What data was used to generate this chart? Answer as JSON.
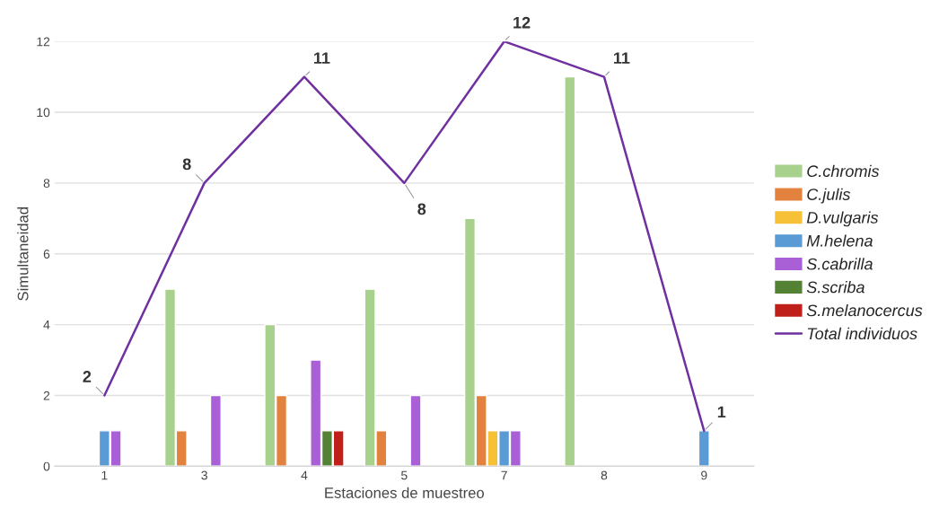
{
  "chart_data": {
    "type": "bar",
    "xlabel": "Estaciones de muestreo",
    "ylabel": "Simultaneidad",
    "categories": [
      "1",
      "3",
      "4",
      "5",
      "7",
      "8",
      "9"
    ],
    "ylim": [
      0,
      12
    ],
    "yticks": [
      0,
      2,
      4,
      6,
      8,
      10,
      12
    ],
    "grid": "y",
    "legend": "right",
    "series": [
      {
        "name": "C.chromis",
        "color": "#a9d18e",
        "values": [
          null,
          5,
          4,
          5,
          7,
          11,
          null
        ]
      },
      {
        "name": "C.julis",
        "color": "#e3823e",
        "values": [
          null,
          1,
          2,
          1,
          2,
          null,
          null
        ]
      },
      {
        "name": "D.vulgaris",
        "color": "#f6c136",
        "values": [
          null,
          null,
          null,
          null,
          1,
          null,
          null
        ]
      },
      {
        "name": "M.helena",
        "color": "#5b9bd5",
        "values": [
          1,
          null,
          null,
          null,
          1,
          null,
          1
        ]
      },
      {
        "name": "S.cabrilla",
        "color": "#a95fd6",
        "values": [
          1,
          2,
          3,
          2,
          1,
          null,
          null
        ]
      },
      {
        "name": "S.scriba",
        "color": "#548235",
        "values": [
          null,
          null,
          1,
          null,
          null,
          null,
          null
        ]
      },
      {
        "name": "S.melanocercus",
        "color": "#c0201a",
        "values": [
          null,
          null,
          1,
          null,
          null,
          null,
          null
        ]
      },
      {
        "type": "line",
        "name": "Total individuos",
        "color": "#7030a0",
        "values": [
          2,
          8,
          11,
          8,
          12,
          11,
          1
        ],
        "value_labels": [
          "2",
          "8",
          "11",
          "8",
          "12",
          "11",
          "1"
        ]
      }
    ]
  }
}
